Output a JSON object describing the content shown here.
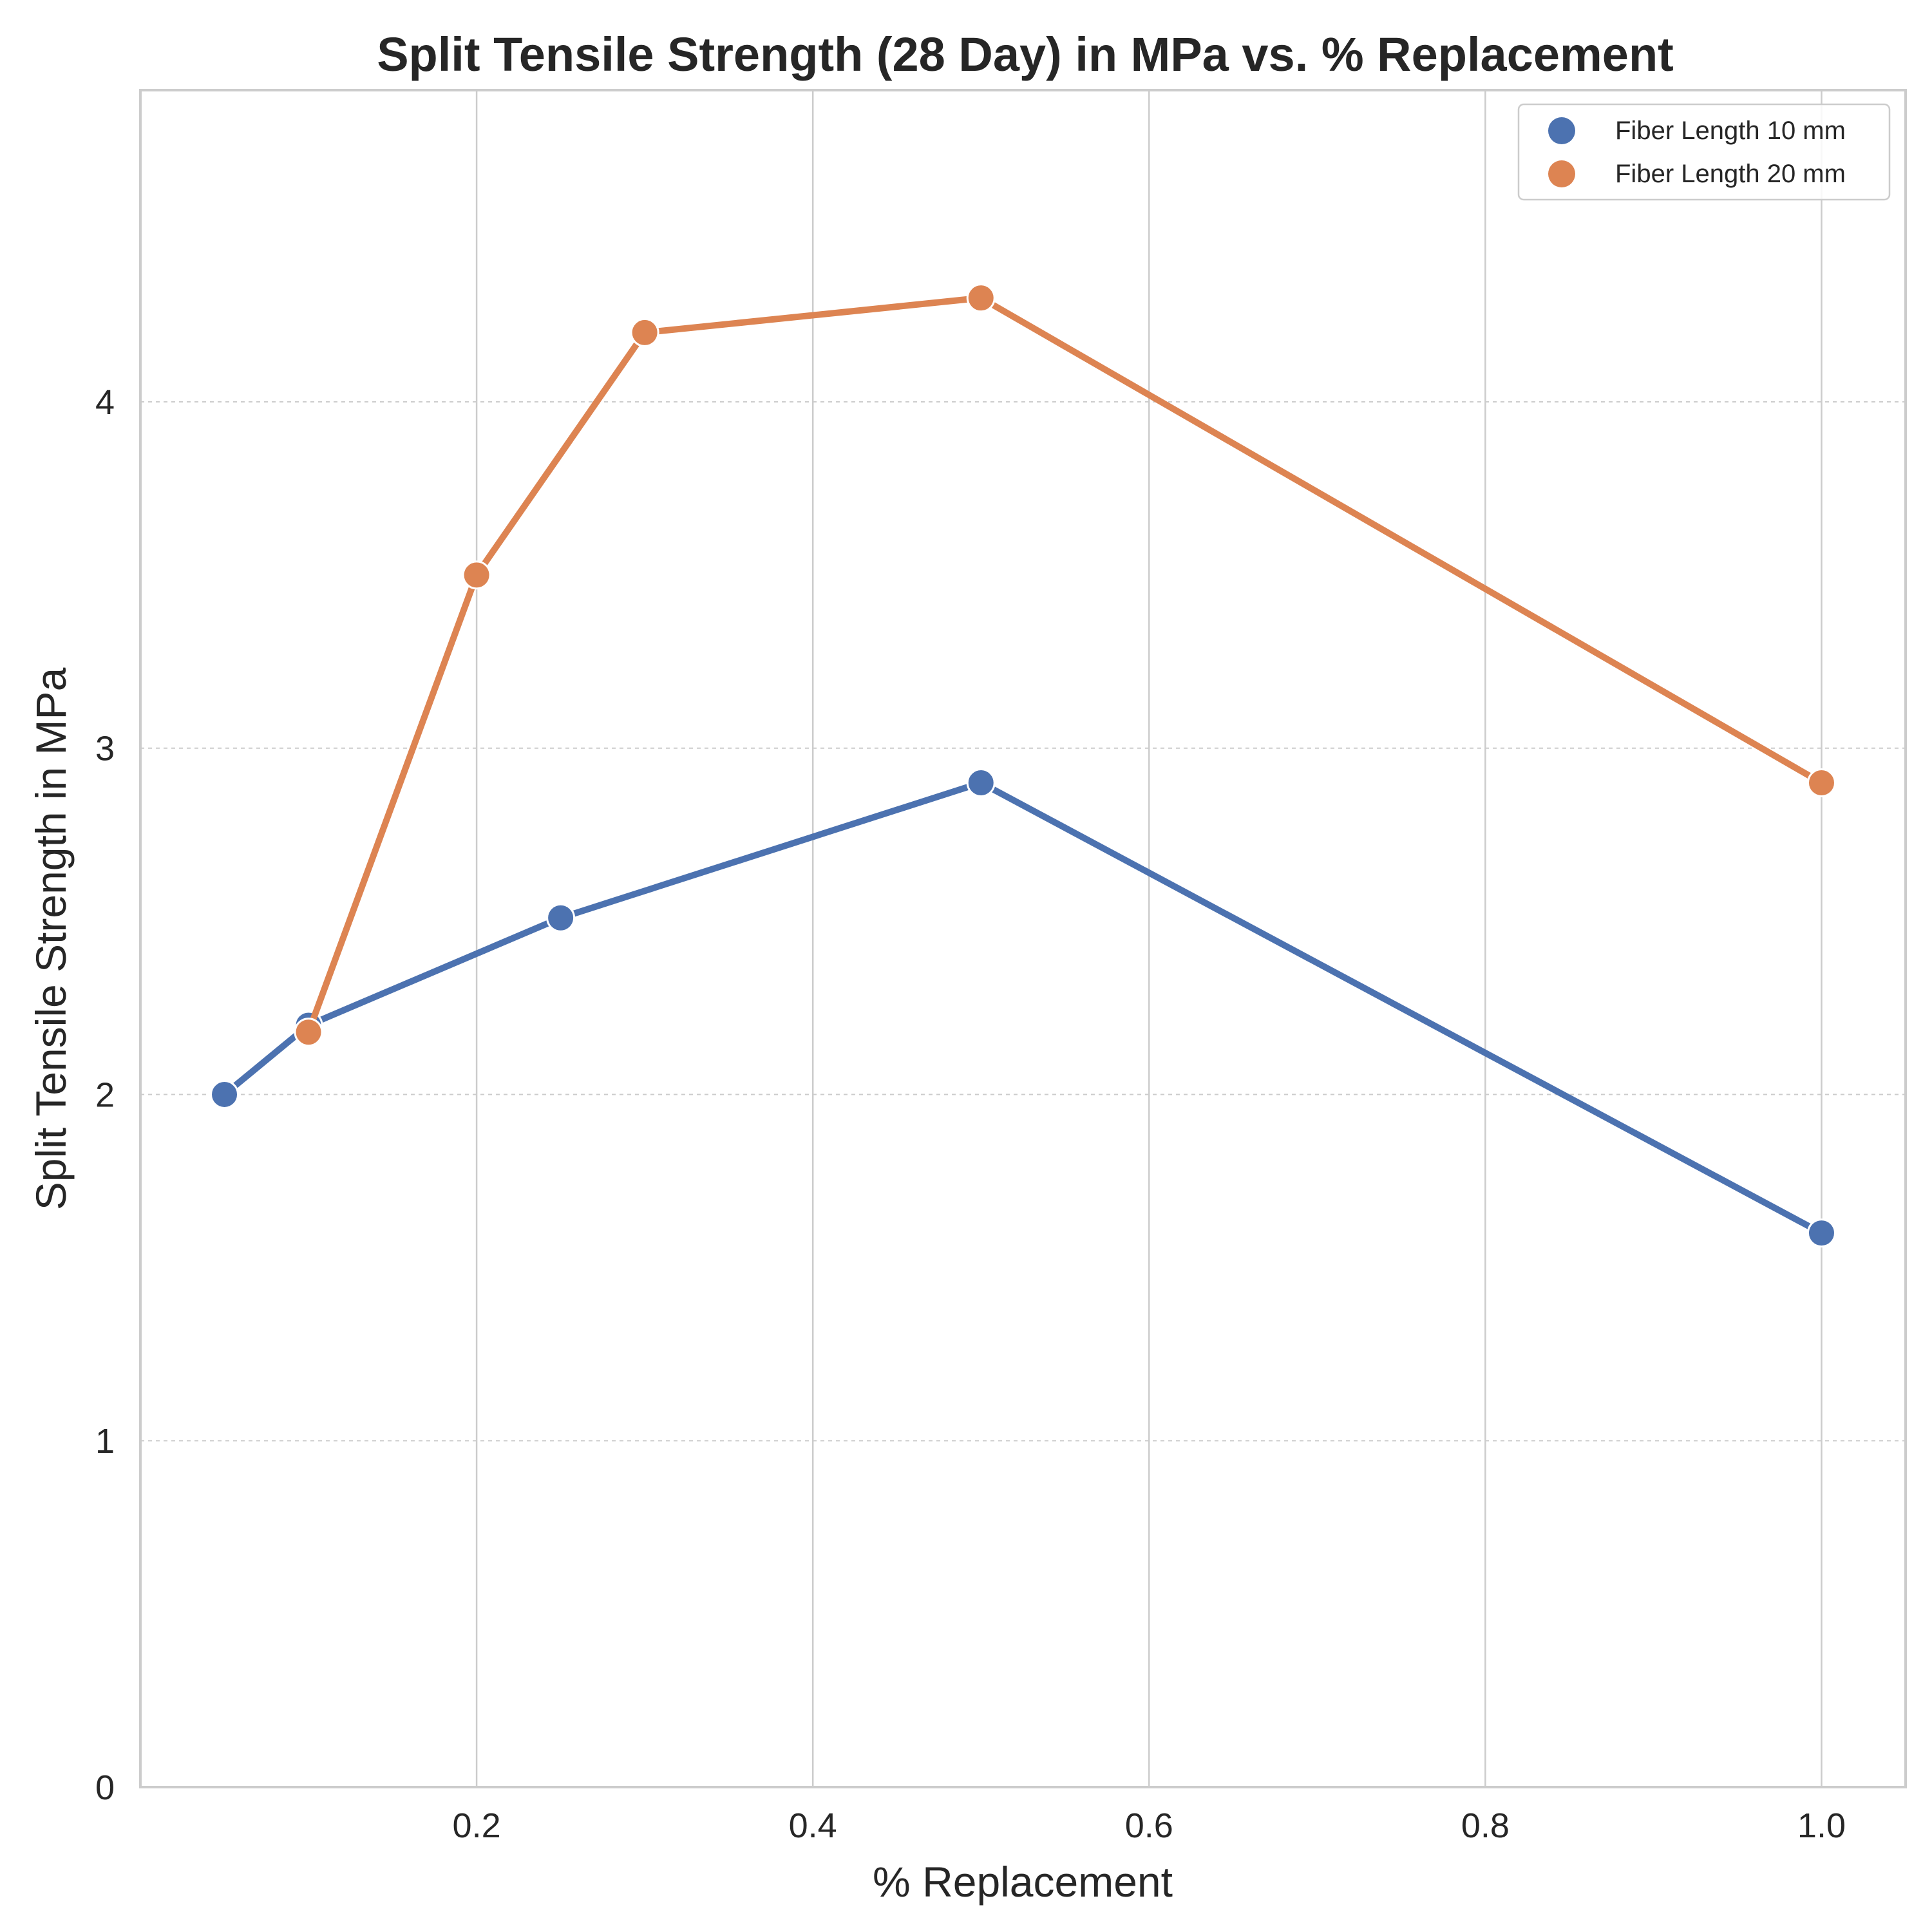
{
  "chart_data": {
    "type": "line",
    "title": "Split Tensile Strength (28 Day) in MPa vs. % Replacement",
    "xlabel": "% Replacement",
    "ylabel": "Split Tensile Strength in MPa",
    "xlim": [
      0.0,
      1.05
    ],
    "ylim": [
      0,
      4.9
    ],
    "xticks": [
      0.2,
      0.4,
      0.6,
      0.8,
      1.0
    ],
    "xtick_labels": [
      "0.2",
      "0.4",
      "0.6",
      "0.8",
      "1.0"
    ],
    "yticks": [
      0,
      1,
      2,
      3,
      4
    ],
    "ytick_labels": [
      "0",
      "1",
      "2",
      "3",
      "4"
    ],
    "grid": true,
    "legend_position": "top-right",
    "series": [
      {
        "name": "Fiber Length 10 mm",
        "color": "#4c72b0",
        "x": [
          0.05,
          0.1,
          0.25,
          0.5,
          1.0
        ],
        "y": [
          2.0,
          2.2,
          2.51,
          2.9,
          1.6
        ]
      },
      {
        "name": "Fiber Length 20 mm",
        "color": "#dd8452",
        "x": [
          0.1,
          0.2,
          0.3,
          0.5,
          1.0
        ],
        "y": [
          2.18,
          3.5,
          4.2,
          4.3,
          2.9
        ]
      }
    ]
  }
}
